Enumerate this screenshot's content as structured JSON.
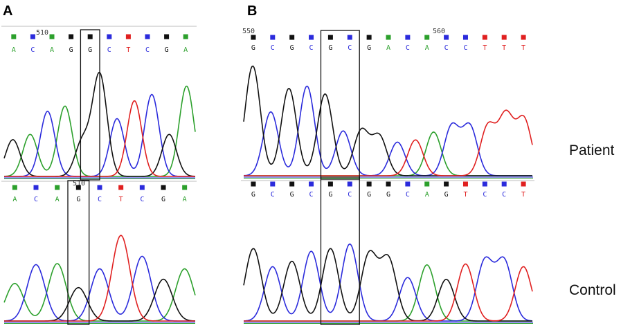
{
  "panels": [
    {
      "id": "A",
      "letter": "A",
      "tracks": [
        {
          "row": "patient",
          "position_label": "510",
          "bases": [
            "A",
            "C",
            "A",
            "G",
            "G",
            "C",
            "T",
            "C",
            "G",
            "A"
          ],
          "peaks": [
            {
              "base": "G",
              "h": 0.35
            },
            {
              "base": "A",
              "h": 0.4
            },
            {
              "base": "C",
              "h": 0.62
            },
            {
              "base": "A",
              "h": 0.67
            },
            {
              "base": "G",
              "h": 0.33
            },
            {
              "base": "G",
              "h": 0.97
            },
            {
              "base": "C",
              "h": 0.55
            },
            {
              "base": "T",
              "h": 0.72
            },
            {
              "base": "C",
              "h": 0.78
            },
            {
              "base": "G",
              "h": 0.4
            },
            {
              "base": "A",
              "h": 0.86
            }
          ],
          "highlight": [
            4,
            4
          ]
        },
        {
          "row": "control",
          "position_label": "510",
          "bases": [
            "A",
            "C",
            "A",
            "G",
            "C",
            "T",
            "C",
            "G",
            "A"
          ],
          "peaks": [
            {
              "base": "A",
              "h": 0.36
            },
            {
              "base": "C",
              "h": 0.54
            },
            {
              "base": "A",
              "h": 0.55
            },
            {
              "base": "G",
              "h": 0.32
            },
            {
              "base": "C",
              "h": 0.5
            },
            {
              "base": "T",
              "h": 0.82
            },
            {
              "base": "C",
              "h": 0.62
            },
            {
              "base": "G",
              "h": 0.4
            },
            {
              "base": "A",
              "h": 0.5
            }
          ],
          "highlight": [
            3,
            3
          ]
        }
      ]
    },
    {
      "id": "B",
      "letter": "B",
      "tracks": [
        {
          "row": "patient",
          "position_labels": [
            "550",
            "560"
          ],
          "bases": [
            "G",
            "C",
            "G",
            "C",
            "G",
            "C",
            "G",
            "A",
            "C",
            "A",
            "C",
            "C",
            "T",
            "T",
            "T"
          ],
          "peaks": [
            {
              "base": "G",
              "h": 0.98
            },
            {
              "base": "C",
              "h": 0.57
            },
            {
              "base": "G",
              "h": 0.78
            },
            {
              "base": "C",
              "h": 0.8
            },
            {
              "base": "G",
              "h": 0.73
            },
            {
              "base": "C",
              "h": 0.4
            },
            {
              "base": "G",
              "h": 0.4
            },
            {
              "base": "G",
              "h": 0.35
            },
            {
              "base": "C",
              "h": 0.3
            },
            {
              "base": "T",
              "h": 0.32
            },
            {
              "base": "A",
              "h": 0.39
            },
            {
              "base": "C",
              "h": 0.44
            },
            {
              "base": "C",
              "h": 0.44
            },
            {
              "base": "T",
              "h": 0.44
            },
            {
              "base": "T",
              "h": 0.53
            },
            {
              "base": "T",
              "h": 0.5
            }
          ],
          "highlight": [
            4,
            5
          ]
        },
        {
          "row": "control",
          "bases": [
            "G",
            "C",
            "G",
            "C",
            "G",
            "C",
            "G",
            "G",
            "C",
            "A",
            "G",
            "T",
            "C",
            "C",
            "T"
          ],
          "peaks": [
            {
              "base": "G",
              "h": 0.8
            },
            {
              "base": "C",
              "h": 0.6
            },
            {
              "base": "G",
              "h": 0.66
            },
            {
              "base": "C",
              "h": 0.77
            },
            {
              "base": "G",
              "h": 0.8
            },
            {
              "base": "C",
              "h": 0.85
            },
            {
              "base": "G",
              "h": 0.73
            },
            {
              "base": "G",
              "h": 0.68
            },
            {
              "base": "C",
              "h": 0.48
            },
            {
              "base": "A",
              "h": 0.62
            },
            {
              "base": "G",
              "h": 0.46
            },
            {
              "base": "T",
              "h": 0.63
            },
            {
              "base": "C",
              "h": 0.66
            },
            {
              "base": "C",
              "h": 0.66
            },
            {
              "base": "T",
              "h": 0.6
            }
          ],
          "highlight": [
            4,
            5
          ]
        }
      ]
    }
  ],
  "row_labels": {
    "patient": "Patient",
    "control": "Control"
  },
  "base_colors": {
    "A": "#2ca02c",
    "C": "#2b2bdc",
    "G": "#111111",
    "T": "#e02020"
  }
}
